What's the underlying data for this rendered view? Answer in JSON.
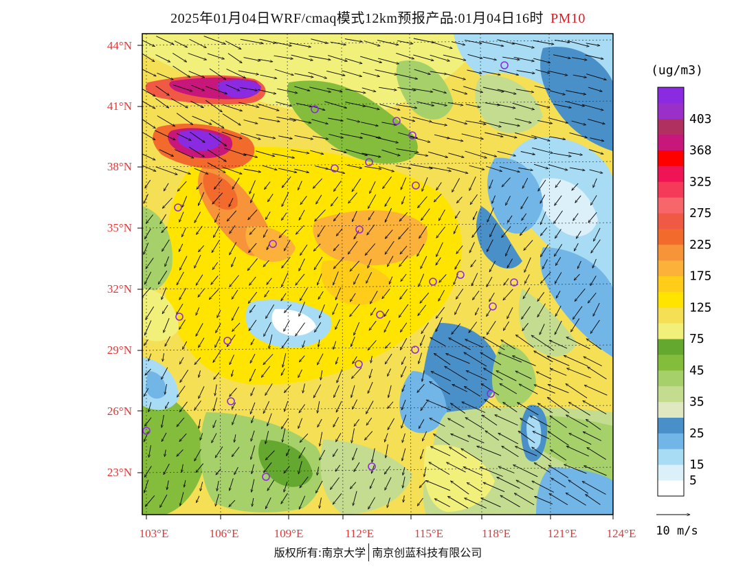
{
  "title": "2025年01月04日WRF/cmaq模式12km预报产品:01月04日16时",
  "pollutant": "PM10",
  "units": "(ug/m3)",
  "colors": {
    "label": "#e23636",
    "station": "#8a2be2",
    "frame": "#000000"
  },
  "lat_labels": [
    "44°N",
    "41°N",
    "38°N",
    "35°N",
    "32°N",
    "29°N",
    "26°N",
    "23°N"
  ],
  "lon_labels": [
    "103°E",
    "106°E",
    "109°E",
    "112°E",
    "115°E",
    "118°E",
    "121°E",
    "124°E"
  ],
  "colorbar": [
    {
      "label": "",
      "color": "#ffffff"
    },
    {
      "label": "5",
      "color": "#dcf0fa"
    },
    {
      "label": "15",
      "color": "#a8dcf5"
    },
    {
      "label": "",
      "color": "#72b6e8"
    },
    {
      "label": "25",
      "color": "#4a90c8"
    },
    {
      "label": "",
      "color": "#dfe8c0"
    },
    {
      "label": "35",
      "color": "#c3dc8f"
    },
    {
      "label": "",
      "color": "#a6d06a"
    },
    {
      "label": "45",
      "color": "#84bd3c"
    },
    {
      "label": "",
      "color": "#65a82f"
    },
    {
      "label": "75",
      "color": "#f0f07a"
    },
    {
      "label": "",
      "color": "#f5e055"
    },
    {
      "label": "125",
      "color": "#ffe400"
    },
    {
      "label": "",
      "color": "#ffcc1a"
    },
    {
      "label": "175",
      "color": "#fbb13a"
    },
    {
      "label": "",
      "color": "#f7943a"
    },
    {
      "label": "225",
      "color": "#f26b2c"
    },
    {
      "label": "",
      "color": "#f05a45"
    },
    {
      "label": "275",
      "color": "#f7666a"
    },
    {
      "label": "",
      "color": "#f43a58"
    },
    {
      "label": "325",
      "color": "#ef1454"
    },
    {
      "label": "",
      "color": "#ff0000"
    },
    {
      "label": "368",
      "color": "#c8177a"
    },
    {
      "label": "",
      "color": "#b03060"
    },
    {
      "label": "403",
      "color": "#9b30c8"
    },
    {
      "label": "",
      "color": "#8a2be2"
    }
  ],
  "wind_scale_label": "10 m/s",
  "footer": {
    "left": "版权所有:南京大学",
    "right": "南京创蓝科技有限公司"
  }
}
